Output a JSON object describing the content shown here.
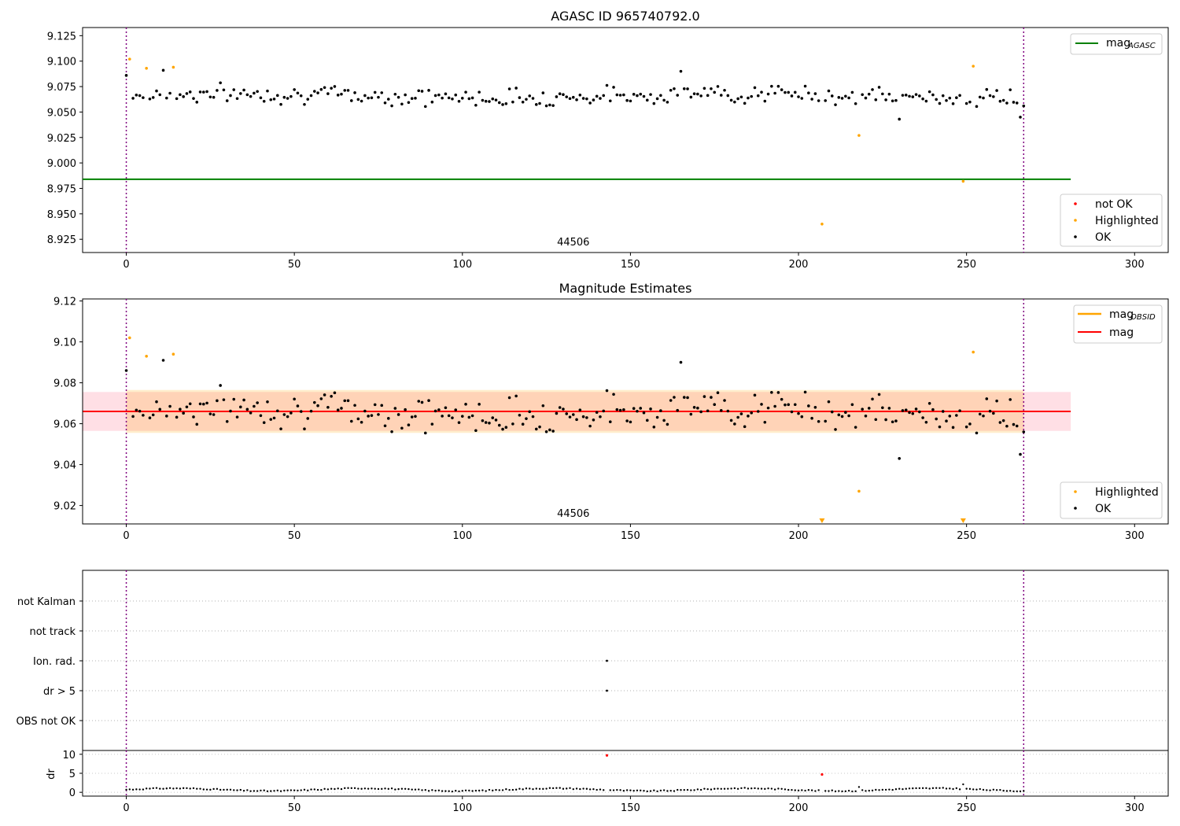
{
  "chart_data": [
    {
      "type": "scatter",
      "title": "AGASC ID 965740792.0",
      "xlim": [
        -13,
        310
      ],
      "ylim": [
        8.912,
        9.133
      ],
      "xticks": [
        "0",
        "50",
        "100",
        "150",
        "200",
        "250",
        "300"
      ],
      "yticks": [
        "8.925",
        "8.950",
        "8.975",
        "9.000",
        "9.025",
        "9.050",
        "9.075",
        "9.100",
        "9.125"
      ],
      "obsid_label": "44506",
      "obsid_bounds": [
        0,
        267
      ],
      "legend_top": [
        {
          "name": "mag",
          "subscript": "AGASC",
          "color": "#008000"
        }
      ],
      "legend_bottom": [
        {
          "name": "not OK",
          "color": "#ff0000"
        },
        {
          "name": "Highlighted",
          "color": "#ffa500"
        },
        {
          "name": "OK",
          "color": "#000000"
        }
      ],
      "mag_agasc": 8.984,
      "mag_agasc_range": [
        -13,
        281
      ],
      "ok_points": [],
      "highlighted_points": [
        [
          1,
          9.102
        ],
        [
          6,
          9.093
        ],
        [
          14,
          9.094
        ],
        [
          207,
          8.94
        ],
        [
          218,
          9.027
        ],
        [
          249,
          8.982
        ],
        [
          252,
          9.095
        ]
      ]
    },
    {
      "type": "scatter",
      "title": "Magnitude Estimates",
      "xlim": [
        -13,
        310
      ],
      "ylim": [
        9.011,
        9.121
      ],
      "xticks": [
        "0",
        "50",
        "100",
        "150",
        "200",
        "250",
        "300"
      ],
      "yticks": [
        "9.02",
        "9.04",
        "9.06",
        "9.08",
        "9.10",
        "9.12"
      ],
      "obsid_label": "44506",
      "obsid_bounds": [
        0,
        267
      ],
      "legend_top": [
        {
          "name": "mag",
          "subscript": "OBSID",
          "color": "#ffa500"
        },
        {
          "name": "mag",
          "subscript": "",
          "color": "#ff0000"
        }
      ],
      "legend_bottom": [
        {
          "name": "Highlighted",
          "color": "#ffa500"
        },
        {
          "name": "OK",
          "color": "#000000"
        }
      ],
      "mag": 9.066,
      "mag_band": [
        9.0565,
        9.0755
      ],
      "mag_obsid": 9.066,
      "mag_obsid_band": [
        9.0555,
        9.0765
      ],
      "highlighted_points": [
        [
          1,
          9.102
        ],
        [
          6,
          9.093
        ],
        [
          14,
          9.094
        ],
        [
          218,
          9.027
        ],
        [
          252,
          9.095
        ]
      ],
      "clipped_low_points": [
        207,
        249
      ]
    },
    {
      "type": "scatter",
      "title": "",
      "xlim": [
        -13,
        310
      ],
      "categories": [
        "not Kalman",
        "not track",
        "Ion. rad.",
        "dr > 5",
        "OBS not OK"
      ],
      "flag_points": [
        {
          "x": 143,
          "category": "Ion. rad."
        },
        {
          "x": 143,
          "category": "dr > 5"
        }
      ],
      "obsid_bounds": [
        0,
        267
      ]
    },
    {
      "type": "scatter",
      "title": "",
      "ylabel": "dr",
      "xlim": [
        -13,
        310
      ],
      "ylim": [
        -1,
        11
      ],
      "xticks": [
        "0",
        "50",
        "100",
        "150",
        "200",
        "250",
        "300"
      ],
      "yticks": [
        "0",
        "5",
        "10"
      ],
      "outlier_points": [
        [
          143,
          9.7
        ],
        [
          207,
          4.7
        ]
      ],
      "obsid_bounds": [
        0,
        267
      ]
    }
  ]
}
